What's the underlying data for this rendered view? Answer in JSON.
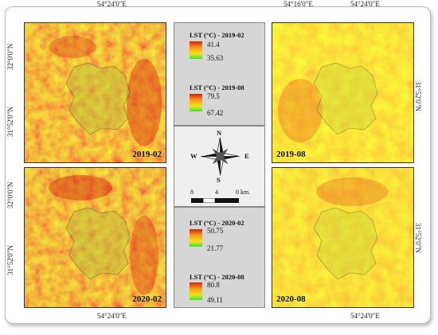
{
  "coords": {
    "top_lon_left": "54°24'0\"E",
    "top_lon_right_a": "54°16'0\"E",
    "top_lon_right_b": "54°24'0\"E",
    "bottom_lon_left": "54°24'0\"E",
    "bottom_lon_right": "54°24'0\"E",
    "lat_32": "32°0'0\"N",
    "lat_31_52": "31°52'0\"N"
  },
  "maps": {
    "tl": {
      "date": "2019-02"
    },
    "tr": {
      "date": "2019-08"
    },
    "bl": {
      "date": "2020-02"
    },
    "br": {
      "date": "2020-08"
    }
  },
  "legends": [
    {
      "title": "LST (°C) - 2019-02",
      "max": "41.4",
      "min": "35.63"
    },
    {
      "title": "LST (°C) - 2019-08",
      "max": "79.5",
      "min": "67.42"
    },
    {
      "title": "LST (°C) - 2020-02",
      "max": "50.75",
      "min": "21.77"
    },
    {
      "title": "LST (°C) - 2020-08",
      "max": "80.8",
      "min": "49.11"
    }
  ],
  "compass": {
    "n": "N",
    "s": "S",
    "e": "E",
    "w": "W"
  },
  "scalebar": {
    "l8": "8",
    "l4": "4",
    "l0": "0 km."
  },
  "colors": {
    "hot": "#d81f0c",
    "warm": "#f59a1b",
    "mild": "#f6e317",
    "cool": "#32e632",
    "panel": "#d6d6d6"
  }
}
